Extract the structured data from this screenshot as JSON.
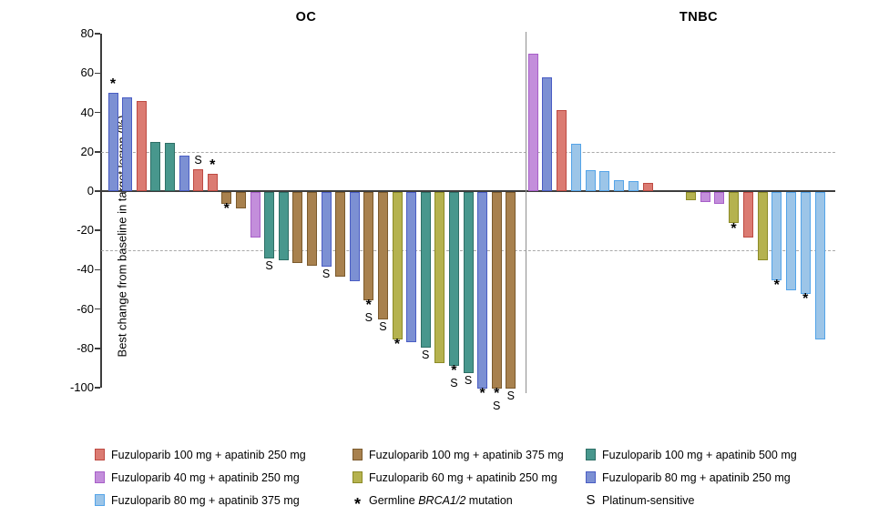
{
  "chart_data": {
    "type": "bar",
    "subtype": "waterfall",
    "ylabel": "Best change from baseline in target lesion (%)",
    "ylim": [
      -100,
      80
    ],
    "yticks": [
      80,
      60,
      40,
      20,
      0,
      -20,
      -40,
      -60,
      -80,
      -100
    ],
    "reference_lines": [
      20,
      -30
    ],
    "grid": false,
    "mark_meanings": {
      "b": "Germline BRCA1/2 mutation",
      "s": "Platinum-sensitive"
    },
    "colors": {
      "f100_a250": {
        "fill": "#DB7B72",
        "stroke": "#BE4A42"
      },
      "f100_a375": {
        "fill": "#A8814E",
        "stroke": "#7B5A2D"
      },
      "f100_a500": {
        "fill": "#48978D",
        "stroke": "#2E6F66"
      },
      "f40_a250": {
        "fill": "#C38EDB",
        "stroke": "#A75FC8"
      },
      "f60_a250": {
        "fill": "#B5B24F",
        "stroke": "#8C8B27"
      },
      "f80_a250": {
        "fill": "#7C90D3",
        "stroke": "#4A5DC4"
      },
      "f80_a375": {
        "fill": "#9CC5E8",
        "stroke": "#54A4E8"
      }
    },
    "panels": [
      {
        "name": "OC",
        "bars": [
          {
            "v": 50,
            "c": "f80_a250",
            "m": "b"
          },
          {
            "v": 47.5,
            "c": "f80_a250",
            "m": ""
          },
          {
            "v": 46,
            "c": "f100_a250",
            "m": ""
          },
          {
            "v": 25,
            "c": "f100_a500",
            "m": ""
          },
          {
            "v": 24.5,
            "c": "f100_a500",
            "m": ""
          },
          {
            "v": 18,
            "c": "f80_a250",
            "m": ""
          },
          {
            "v": 11,
            "c": "f100_a250",
            "m": "s"
          },
          {
            "v": 9,
            "c": "f100_a250",
            "m": "b"
          },
          {
            "v": -6,
            "c": "f100_a375",
            "m": "b"
          },
          {
            "v": -8.5,
            "c": "f100_a375",
            "m": ""
          },
          {
            "v": -23,
            "c": "f40_a250",
            "m": ""
          },
          {
            "v": -34,
            "c": "f100_a500",
            "m": "s"
          },
          {
            "v": -35,
            "c": "f100_a500",
            "m": ""
          },
          {
            "v": -36,
            "c": "f100_a375",
            "m": ""
          },
          {
            "v": -37.5,
            "c": "f100_a375",
            "m": ""
          },
          {
            "v": -38,
            "c": "f80_a250",
            "m": "s"
          },
          {
            "v": -43,
            "c": "f100_a375",
            "m": ""
          },
          {
            "v": -45.5,
            "c": "f80_a250",
            "m": ""
          },
          {
            "v": -55,
            "c": "f100_a375",
            "m": "bs"
          },
          {
            "v": -65,
            "c": "f100_a375",
            "m": "s"
          },
          {
            "v": -75,
            "c": "f60_a250",
            "m": "b"
          },
          {
            "v": -76.5,
            "c": "f80_a250",
            "m": ""
          },
          {
            "v": -79,
            "c": "f100_a500",
            "m": "s"
          },
          {
            "v": -87,
            "c": "f60_a250",
            "m": ""
          },
          {
            "v": -88.5,
            "c": "f100_a500",
            "m": "bs"
          },
          {
            "v": -92,
            "c": "f100_a500",
            "m": "s"
          },
          {
            "v": -100,
            "c": "f80_a250",
            "m": "b"
          },
          {
            "v": -100,
            "c": "f100_a375",
            "m": "bs"
          },
          {
            "v": -100,
            "c": "f100_a375",
            "m": "s"
          }
        ]
      },
      {
        "name": "TNBC",
        "bars": [
          {
            "v": 70,
            "c": "f40_a250",
            "m": ""
          },
          {
            "v": 58,
            "c": "f80_a250",
            "m": ""
          },
          {
            "v": 41,
            "c": "f100_a250",
            "m": ""
          },
          {
            "v": 24,
            "c": "f80_a375",
            "m": ""
          },
          {
            "v": 10.5,
            "c": "f80_a375",
            "m": ""
          },
          {
            "v": 10,
            "c": "f80_a375",
            "m": ""
          },
          {
            "v": 5.5,
            "c": "f80_a375",
            "m": ""
          },
          {
            "v": 5,
            "c": "f80_a375",
            "m": ""
          },
          {
            "v": 4,
            "c": "f100_a250",
            "m": ""
          },
          {
            "v": 0,
            "c": null,
            "m": ""
          },
          {
            "v": 0,
            "c": null,
            "m": ""
          },
          {
            "v": -4,
            "c": "f60_a250",
            "m": ""
          },
          {
            "v": -5,
            "c": "f40_a250",
            "m": ""
          },
          {
            "v": -6,
            "c": "f40_a250",
            "m": ""
          },
          {
            "v": -16,
            "c": "f60_a250",
            "m": "b"
          },
          {
            "v": -23,
            "c": "f100_a250",
            "m": ""
          },
          {
            "v": -35,
            "c": "f60_a250",
            "m": ""
          },
          {
            "v": -45,
            "c": "f80_a375",
            "m": "b"
          },
          {
            "v": -50,
            "c": "f80_a375",
            "m": ""
          },
          {
            "v": -52,
            "c": "f80_a375",
            "m": "b"
          },
          {
            "v": -75,
            "c": "f80_a375",
            "m": ""
          }
        ]
      }
    ]
  },
  "legend": {
    "items": [
      {
        "label": "Fuzuloparib 100 mg + apatinib 250 mg",
        "color": "f100_a250"
      },
      {
        "label": "Fuzuloparib 100 mg + apatinib 375 mg",
        "color": "f100_a375"
      },
      {
        "label": "Fuzuloparib 100 mg + apatinib 500 mg",
        "color": "f100_a500"
      },
      {
        "label": "Fuzuloparib 40 mg + apatinib 250 mg",
        "color": "f40_a250"
      },
      {
        "label": "Fuzuloparib 60 mg + apatinib 250 mg",
        "color": "f60_a250"
      },
      {
        "label": "Fuzuloparib 80 mg + apatinib 250 mg",
        "color": "f80_a250"
      },
      {
        "label": "Fuzuloparib 80 mg + apatinib 375 mg",
        "color": "f80_a375"
      }
    ],
    "brca": {
      "symbol": "*",
      "prefix": "Germline",
      "italic": "BRCA1/2",
      "suffix": "mutation"
    },
    "platinum": {
      "symbol": "S",
      "label": "Platinum-sensitive"
    }
  }
}
